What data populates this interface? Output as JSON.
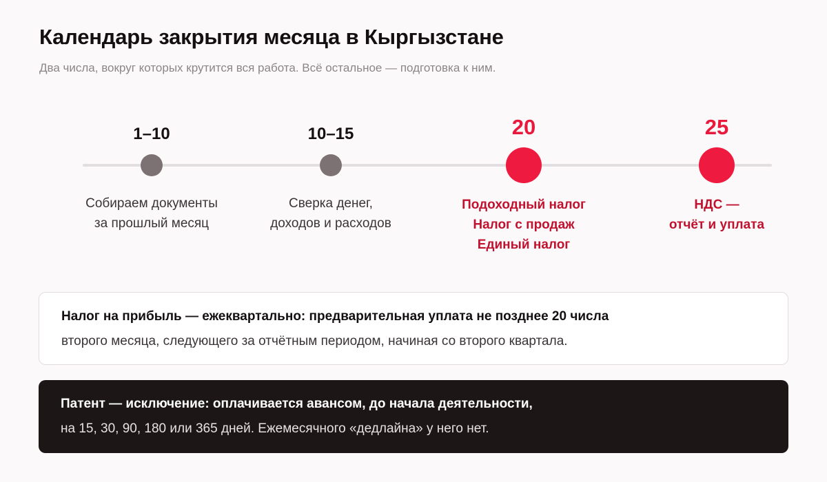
{
  "header": {
    "title": "Календарь закрытия месяца в Кыргызстане",
    "subtitle": "Два числа, вокруг которых крутится вся работа. Всё остальное — подготовка к ним."
  },
  "timeline": {
    "milestones": [
      {
        "label": "1–10",
        "emphasis": "normal",
        "description": [
          "Собираем документы",
          "за прошлый месяц"
        ]
      },
      {
        "label": "10–15",
        "emphasis": "normal",
        "description": [
          "Сверка денег,",
          "доходов и расходов"
        ]
      },
      {
        "label": "20",
        "emphasis": "deadline",
        "description": [
          "Подоходный налог",
          "Налог с продаж",
          "Единый налог"
        ]
      },
      {
        "label": "25",
        "emphasis": "deadline",
        "description": [
          "НДС —",
          "отчёт и уплата"
        ]
      }
    ]
  },
  "notes": {
    "profit_tax": {
      "lead": "Налог на прибыль — ежеквартально: предварительная уплата не позднее 20 числа",
      "rest": "второго месяца, следующего за отчётным периодом, начиная со второго квартала."
    },
    "patent": {
      "lead": "Патент — исключение: оплачивается авансом, до начала деятельности,",
      "rest": "на 15, 30, 90, 180 или 365 дней. Ежемесячного «дедлайна» у него нет."
    }
  },
  "colors": {
    "accent": "#ee1a3f",
    "accent_text": "#c0122f",
    "neutral_dot": "#7c7273",
    "dark_card": "#1d1617"
  }
}
